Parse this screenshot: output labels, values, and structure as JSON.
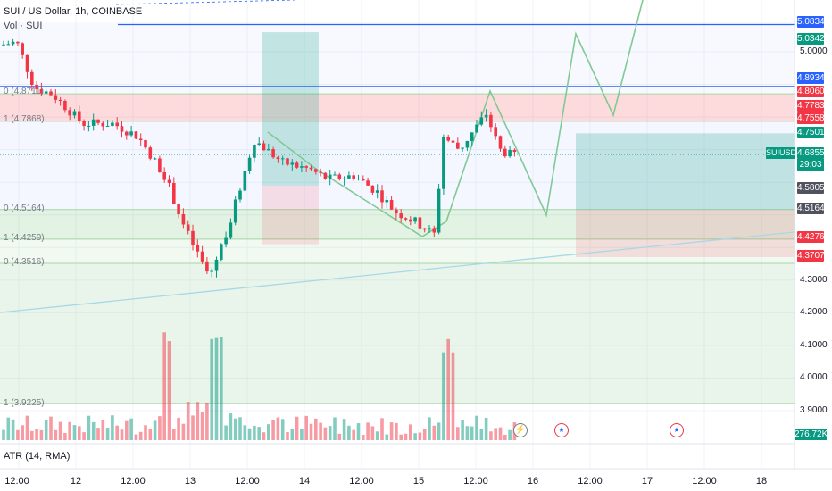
{
  "header": {
    "title": "SUI / US Dollar, 1h, COINBASE",
    "volume_label": "Vol · SUI",
    "atr_label": "ATR (14, RMA)"
  },
  "fib_labels": [
    "0 (4.8711)",
    "1 (4.7868)",
    "0 (4.5164)",
    "1 (4.4259)",
    "0 (4.3516)",
    "1 (3.9225)"
  ],
  "x_axis_labels": [
    "12:00",
    "12",
    "12:00",
    "13",
    "12:00",
    "14",
    "12:00",
    "15",
    "12:00",
    "16",
    "12:00",
    "17",
    "12:00",
    "18"
  ],
  "price_axis_labels": [
    "5.0000",
    "4.3000",
    "4.2000",
    "4.1000",
    "4.0000",
    "3.9000"
  ],
  "price_badges": [
    {
      "label": "5.0834",
      "color": "#2962ff"
    },
    {
      "label": "5.0342",
      "color": "#089981"
    },
    {
      "label": "4.8934",
      "color": "#2962ff"
    },
    {
      "label": "4.8060",
      "color": "#f23645"
    },
    {
      "label": "4.7783",
      "color": "#f23645"
    },
    {
      "label": "4.7558",
      "color": "#f23645"
    },
    {
      "label": "4.7501",
      "color": "#089981"
    },
    {
      "label": "4.6855",
      "color": "#089981"
    },
    {
      "label": "4.5805",
      "color": "#50535e"
    },
    {
      "label": "4.5164",
      "color": "#50535e"
    },
    {
      "label": "4.4276",
      "color": "#f23645"
    },
    {
      "label": "4.3707",
      "color": "#f23645"
    }
  ],
  "symbol_badge": "SUIUSD",
  "countdown": "29:03",
  "volume_badge": "276.72K",
  "event_icons": {
    "flag1": "us-flag-icon",
    "flag2": "us-flag-icon",
    "bolt": "lightning-icon"
  },
  "colors": {
    "up": "#089981",
    "down": "#f23645",
    "trendline": "#2962ff",
    "fib_green": "#4caf50",
    "fib_red": "#f23645"
  },
  "chart_data": {
    "type": "candlestick",
    "symbol": "SUI / US Dollar",
    "interval": "1h",
    "exchange": "COINBASE",
    "horizontal_lines": [
      5.0834,
      4.8934
    ],
    "last_price": 4.6855,
    "fib_levels": [
      4.8711,
      4.7868,
      4.5164,
      4.4259,
      4.3516,
      3.9225
    ]
  }
}
